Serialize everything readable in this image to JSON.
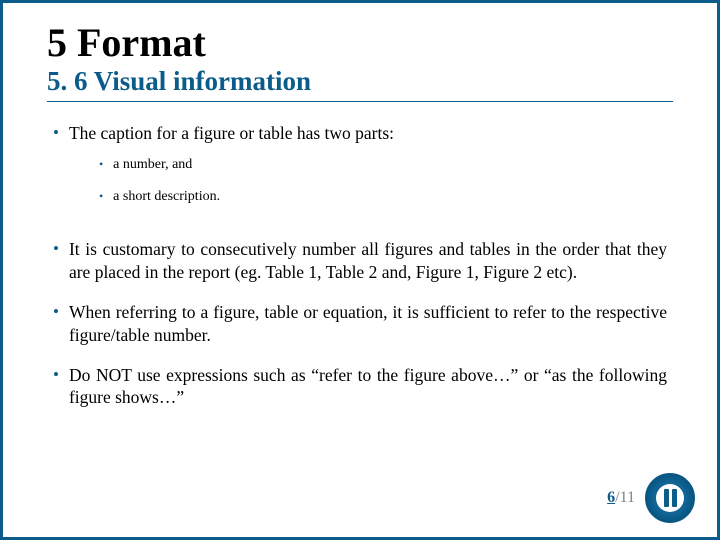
{
  "colors": {
    "accent": "#0b5c8a",
    "text": "#000000",
    "muted": "#808080",
    "background": "#ffffff"
  },
  "title": {
    "main": "5 Format",
    "sub": "5. 6 Visual information"
  },
  "bullets": [
    {
      "text": "The caption for a figure or table has two parts:",
      "sub": [
        "a number, and",
        "a short description."
      ]
    },
    {
      "text": "It is customary to consecutively number all figures and tables in the order that they are placed in the report (eg. Table 1, Table 2 and, Figure 1, Figure 2 etc)."
    },
    {
      "text": "When referring to a figure, table or equation, it is sufficient to refer to the respective figure/table number."
    },
    {
      "text": "Do NOT use expressions such as “refer to the figure above…” or “as the following figure shows…”"
    }
  ],
  "page": {
    "current": "6",
    "sep": "/",
    "total": "11"
  },
  "typography": {
    "title_main_size": 40,
    "title_sub_size": 27,
    "body_size": 17.5,
    "sub_body_size": 14,
    "font_family": "Times New Roman"
  }
}
